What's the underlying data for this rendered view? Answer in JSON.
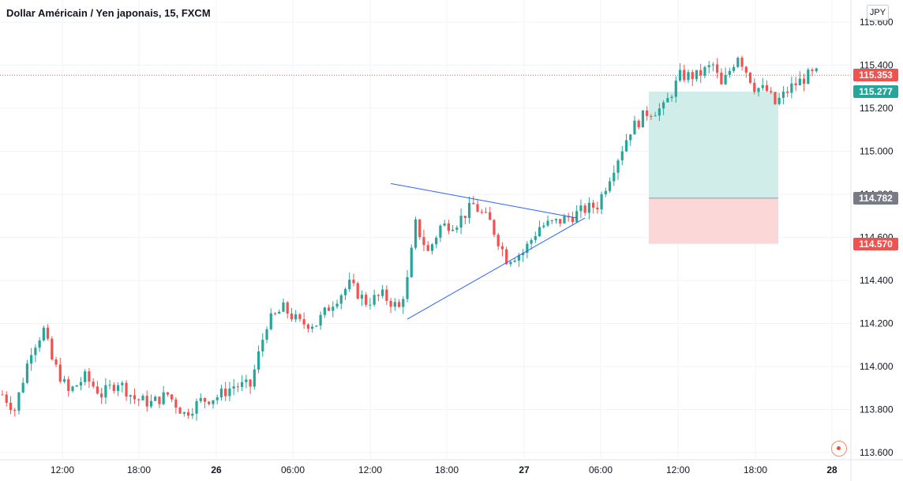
{
  "header": {
    "symbol_title": "Dollar Américain / Yen japonais, 15, FXCM"
  },
  "price_axis": {
    "currency": "JPY",
    "ticks": [
      "115.600",
      "115.400",
      "115.200",
      "115.000",
      "114.800",
      "114.600",
      "114.400",
      "114.200",
      "114.000",
      "113.800",
      "113.600"
    ],
    "tick_values": [
      115.6,
      115.4,
      115.2,
      115.0,
      114.8,
      114.6,
      114.4,
      114.2,
      114.0,
      113.8,
      113.6
    ]
  },
  "time_axis": {
    "ticks": [
      "12:00",
      "18:00",
      "26",
      "06:00",
      "12:00",
      "18:00",
      "27",
      "06:00",
      "12:00",
      "18:00",
      "28"
    ]
  },
  "price_labels": {
    "last_price": "115.353",
    "target": "115.277",
    "entry": "114.782",
    "stop": "114.570"
  },
  "colors": {
    "up": "#26a69a",
    "down": "#ef5350",
    "trendline": "#2962ff",
    "profit_zone": "#d1ede9",
    "loss_zone": "#fcd7d7",
    "last_price_line": "#ef5350",
    "entry_tag": "#787b86",
    "grid": "#f0f3fa"
  },
  "chart_data": {
    "type": "candlestick",
    "title": "Dollar Américain / Yen japonais, 15, FXCM",
    "ylim": [
      113.6,
      115.6
    ],
    "grid": true,
    "x_ticks": [
      "12:00",
      "18:00",
      "26",
      "06:00",
      "12:00",
      "18:00",
      "27",
      "06:00",
      "12:00",
      "18:00",
      "28"
    ],
    "close_path": [
      {
        "t": 0,
        "c": 113.87
      },
      {
        "t": 3,
        "c": 113.8
      },
      {
        "t": 7,
        "c": 114.08
      },
      {
        "t": 10,
        "c": 114.17
      },
      {
        "t": 12,
        "c": 114.03
      },
      {
        "t": 16,
        "c": 113.88
      },
      {
        "t": 20,
        "c": 113.95
      },
      {
        "t": 24,
        "c": 113.87
      },
      {
        "t": 28,
        "c": 113.93
      },
      {
        "t": 32,
        "c": 113.85
      },
      {
        "t": 36,
        "c": 113.83
      },
      {
        "t": 40,
        "c": 113.87
      },
      {
        "t": 44,
        "c": 113.78
      },
      {
        "t": 48,
        "c": 113.84
      },
      {
        "t": 52,
        "c": 113.86
      },
      {
        "t": 56,
        "c": 113.91
      },
      {
        "t": 60,
        "c": 113.91
      },
      {
        "t": 64,
        "c": 114.2
      },
      {
        "t": 68,
        "c": 114.27
      },
      {
        "t": 72,
        "c": 114.2
      },
      {
        "t": 76,
        "c": 114.2
      },
      {
        "t": 80,
        "c": 114.3
      },
      {
        "t": 84,
        "c": 114.38
      },
      {
        "t": 88,
        "c": 114.3
      },
      {
        "t": 92,
        "c": 114.33
      },
      {
        "t": 96,
        "c": 114.27
      },
      {
        "t": 98,
        "c": 114.4
      },
      {
        "t": 100,
        "c": 114.66
      },
      {
        "t": 103,
        "c": 114.53
      },
      {
        "t": 106,
        "c": 114.65
      },
      {
        "t": 110,
        "c": 114.67
      },
      {
        "t": 114,
        "c": 114.75
      },
      {
        "t": 118,
        "c": 114.67
      },
      {
        "t": 122,
        "c": 114.5
      },
      {
        "t": 126,
        "c": 114.53
      },
      {
        "t": 130,
        "c": 114.65
      },
      {
        "t": 134,
        "c": 114.67
      },
      {
        "t": 138,
        "c": 114.7
      },
      {
        "t": 141,
        "c": 114.73
      },
      {
        "t": 144,
        "c": 114.75
      },
      {
        "t": 148,
        "c": 114.93
      },
      {
        "t": 152,
        "c": 115.1
      },
      {
        "t": 156,
        "c": 115.18
      },
      {
        "t": 160,
        "c": 115.2
      },
      {
        "t": 164,
        "c": 115.35
      },
      {
        "t": 168,
        "c": 115.35
      },
      {
        "t": 172,
        "c": 115.4
      },
      {
        "t": 174,
        "c": 115.3
      },
      {
        "t": 178,
        "c": 115.45
      },
      {
        "t": 182,
        "c": 115.3
      },
      {
        "t": 185,
        "c": 115.28
      },
      {
        "t": 187,
        "c": 115.22
      },
      {
        "t": 191,
        "c": 115.3
      },
      {
        "t": 195,
        "c": 115.35
      },
      {
        "t": 197,
        "c": 115.36
      }
    ],
    "trendlines": [
      {
        "name": "upper",
        "from": {
          "t": 94,
          "c": 114.85
        },
        "to": {
          "t": 139,
          "c": 114.69
        }
      },
      {
        "name": "lower",
        "from": {
          "t": 98,
          "c": 114.22
        },
        "to": {
          "t": 141,
          "c": 114.69
        }
      }
    ],
    "position": {
      "type": "long",
      "entry": 114.782,
      "target": 115.277,
      "stop": 114.57,
      "last_price": 115.353
    }
  }
}
